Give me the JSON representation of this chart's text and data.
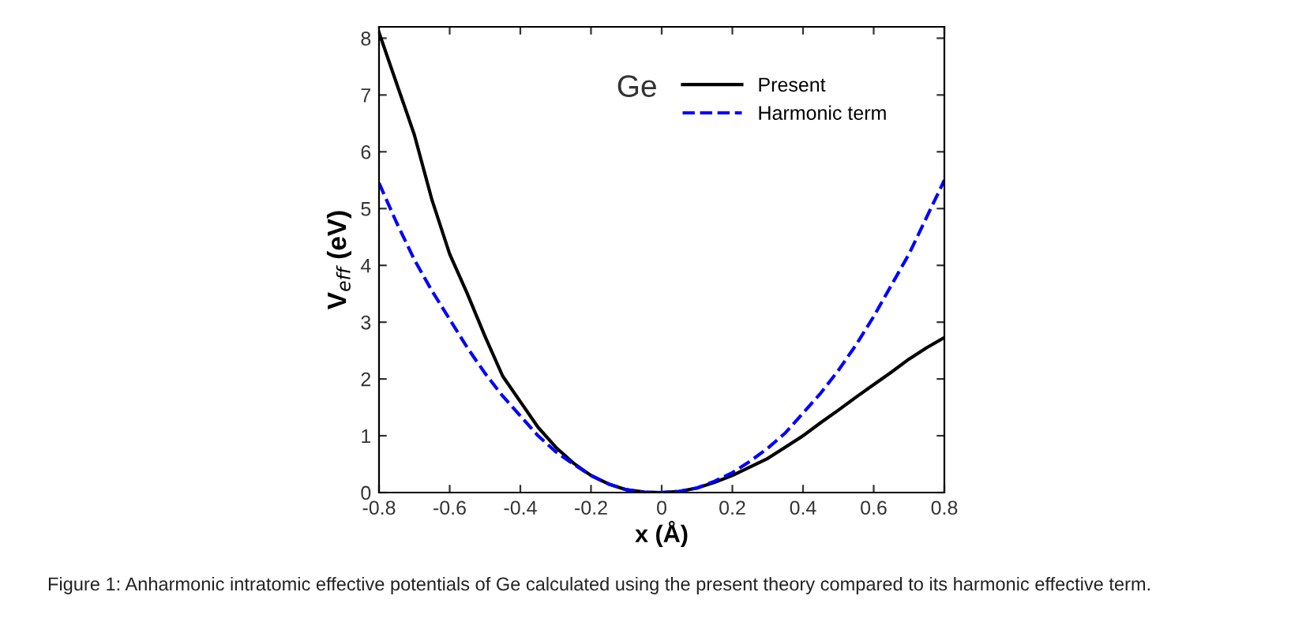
{
  "chart_data": {
    "type": "line",
    "xlabel": "x (Å)",
    "ylabel": "V$_{eff}$ (eV)",
    "x": [
      -0.8,
      -0.75,
      -0.7,
      -0.65,
      -0.6,
      -0.55,
      -0.5,
      -0.45,
      -0.4,
      -0.35,
      -0.3,
      -0.25,
      -0.2,
      -0.15,
      -0.1,
      -0.05,
      0,
      0.05,
      0.1,
      0.15,
      0.2,
      0.25,
      0.3,
      0.35,
      0.4,
      0.45,
      0.5,
      0.55,
      0.6,
      0.65,
      0.7,
      0.75,
      0.8
    ],
    "series": [
      {
        "name": "Present",
        "color": "#000000",
        "line_style": "solid",
        "values": [
          8.1,
          7.2,
          6.3,
          5.15,
          4.2,
          3.5,
          2.75,
          2.05,
          1.6,
          1.15,
          0.8,
          0.52,
          0.3,
          0.15,
          0.05,
          0.01,
          0,
          0.02,
          0.08,
          0.18,
          0.3,
          0.45,
          0.6,
          0.8,
          1.0,
          1.23,
          1.45,
          1.68,
          1.9,
          2.12,
          2.35,
          2.55,
          2.73
        ]
      },
      {
        "name": "Harmonic term",
        "color": "#0000ff",
        "line_style": "dashed",
        "values": [
          5.45,
          4.75,
          4.1,
          3.55,
          3.05,
          2.55,
          2.1,
          1.7,
          1.35,
          1.0,
          0.72,
          0.5,
          0.3,
          0.15,
          0.05,
          0.0,
          0,
          0.02,
          0.08,
          0.2,
          0.35,
          0.55,
          0.78,
          1.05,
          1.4,
          1.75,
          2.15,
          2.6,
          3.1,
          3.65,
          4.2,
          4.85,
          5.5
        ]
      }
    ],
    "xlim": [
      -0.8,
      0.8
    ],
    "xticks": [
      -0.8,
      -0.6,
      -0.4,
      -0.2,
      0,
      0.2,
      0.4,
      0.6,
      0.8
    ],
    "ylim": [
      0,
      8.2
    ],
    "yticks": [
      0,
      1,
      2,
      3,
      4,
      5,
      6,
      7,
      8
    ],
    "grid": false,
    "legend": "top right",
    "marker": "none",
    "annotations": [
      "Ge",
      "Figure 1: Anharmonic intratomic effective potentials of Ge calculated using the present theory compared to its harmonic effective term."
    ]
  }
}
